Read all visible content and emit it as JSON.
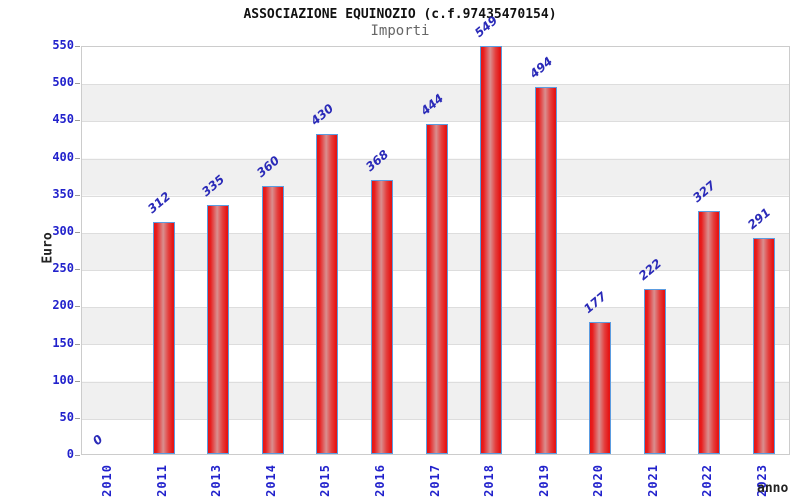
{
  "chart_data": {
    "type": "bar",
    "title": "ASSOCIAZIONE EQUINOZIO (c.f.97435470154)",
    "subtitle": "Importi",
    "xlabel": "anno",
    "ylabel": "Euro",
    "categories": [
      "2010",
      "2011",
      "2013",
      "2014",
      "2015",
      "2016",
      "2017",
      "2018",
      "2019",
      "2020",
      "2021",
      "2022",
      "2023"
    ],
    "values": [
      0,
      312,
      335,
      360,
      430,
      368,
      444,
      549,
      494,
      177,
      222,
      327,
      291
    ],
    "ylim": [
      0,
      550
    ],
    "ytick_step": 50,
    "yticks": [
      0,
      50,
      100,
      150,
      200,
      250,
      300,
      350,
      400,
      450,
      500,
      550
    ],
    "grid": true,
    "band_fill": "alternating 50-unit horizontal bands",
    "legend": null,
    "colors": {
      "bar_edge_red": "#e51515",
      "bar_highlight": "#d98f8f",
      "bar_border_blue": "#5b9ce0",
      "tick_label_blue": "#2222cc",
      "data_label_blue": "#2a2ab8",
      "band_gray": "#f0f0f0",
      "gridline_gray": "#dddddd",
      "title_color": "#111111",
      "subtitle_color": "#666666"
    }
  }
}
